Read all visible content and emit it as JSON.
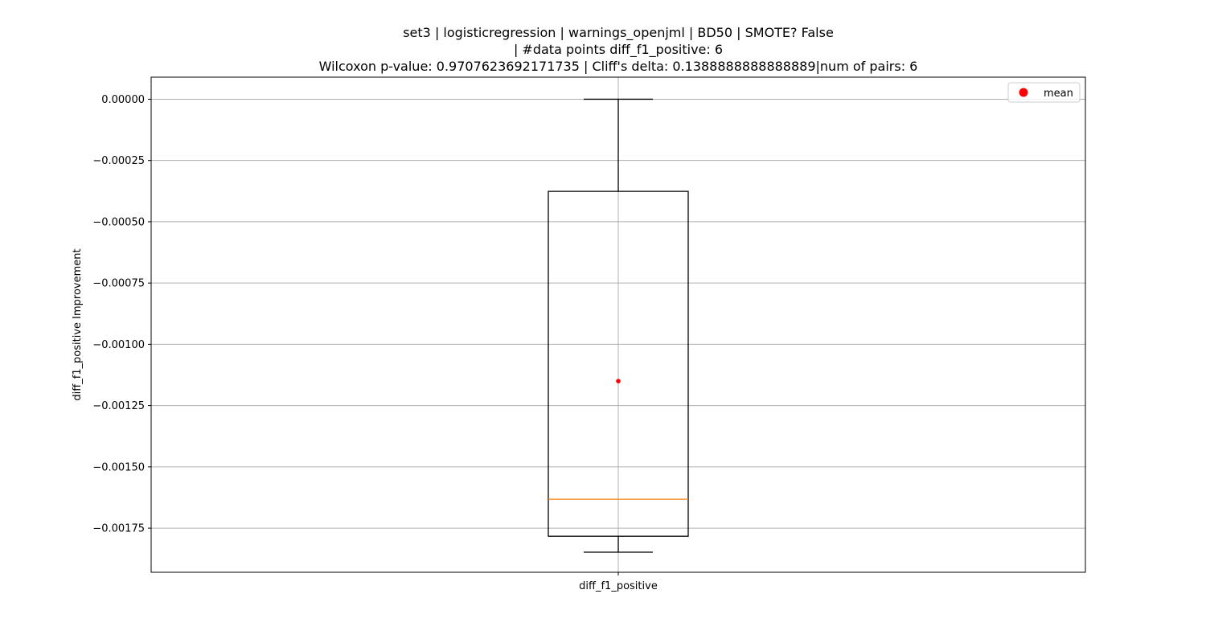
{
  "chart_data": {
    "type": "box",
    "title_lines": [
      "set3 | logisticregression | warnings_openjml | BD50 | SMOTE? False",
      "| #data points diff_f1_positive: 6",
      "Wilcoxon p-value: 0.9707623692171735 | Cliff's delta: 0.1388888888888889|num of pairs: 6"
    ],
    "ylabel": "diff_f1_positive Improvement",
    "categories": [
      "diff_f1_positive"
    ],
    "ylim": [
      -0.00193,
      9e-05
    ],
    "yticks": [
      0.0,
      -0.00025,
      -0.0005,
      -0.00075,
      -0.001,
      -0.00125,
      -0.0015,
      -0.00175
    ],
    "ytick_labels": [
      "0.00000",
      "−0.00025",
      "−0.00050",
      "−0.00075",
      "−0.00100",
      "−0.00125",
      "−0.00150",
      "−0.00175"
    ],
    "grid": true,
    "box": {
      "whisker_low": -0.001848,
      "q1": -0.001783,
      "median": -0.001632,
      "q3": -0.000376,
      "whisker_high": 0.0,
      "mean": -0.00115
    },
    "legend": {
      "position": "top-right",
      "entries": [
        {
          "label": "mean",
          "color": "#ff0000",
          "marker": "circle"
        }
      ]
    },
    "colors": {
      "box": "#000000",
      "median": "#ff7f0e",
      "mean": "#ff0000",
      "grid": "#b0b0b0"
    }
  }
}
